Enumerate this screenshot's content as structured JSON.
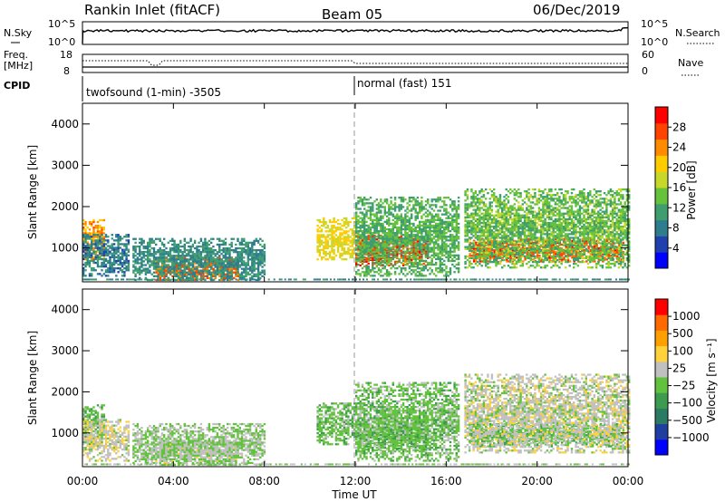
{
  "header": {
    "station": "Rankin Inlet (fitACF)",
    "beam": "Beam 05",
    "date": "06/Dec/2019"
  },
  "status_panels": {
    "nsky": {
      "left_label": "N.Sky",
      "right_label": "N.Search",
      "left_ticks": [
        "10^5",
        "10^0"
      ],
      "right_ticks": [
        "10^5",
        "10^0"
      ]
    },
    "freq": {
      "left_label": "Freq.",
      "left_unit": "[MHz]",
      "right_label": "Nave",
      "left_ticks": [
        "18",
        "8"
      ],
      "right_ticks": [
        "60",
        "0"
      ]
    },
    "cpid": {
      "label": "CPID",
      "segments": [
        {
          "text": "twofsound (1-min) -3505",
          "start_hour": 0,
          "end_hour": 12
        },
        {
          "text": "normal (fast) 151",
          "start_hour": 12,
          "end_hour": 24
        }
      ]
    }
  },
  "chart_data": [
    {
      "type": "heatmap",
      "name": "power",
      "ylabel": "Slant Range [km]",
      "yticks": [
        "1000",
        "2000",
        "3000",
        "4000"
      ],
      "ylim": [
        180,
        4500
      ],
      "xlim": [
        0,
        24
      ],
      "colorbar": {
        "label": "Power [dB]",
        "ticks": [
          "28",
          "24",
          "20",
          "16",
          "12",
          "8",
          "4"
        ],
        "range": [
          0,
          30
        ],
        "colors": [
          "#0000ff",
          "#2040b0",
          "#2e7d8f",
          "#3e9e6e",
          "#66c23a",
          "#c8d82a",
          "#ffcc00",
          "#ff8c00",
          "#ff4400",
          "#ff0000"
        ]
      },
      "echo_regions": [
        {
          "t0": 0.0,
          "t1": 0.9,
          "r0": 700,
          "r1": 1650,
          "level": 22
        },
        {
          "t0": 0.0,
          "t1": 2.0,
          "r0": 300,
          "r1": 1300,
          "level": 8
        },
        {
          "t0": 3.2,
          "t1": 6.8,
          "r0": 200,
          "r1": 750,
          "level": 24
        },
        {
          "t0": 2.2,
          "t1": 8.0,
          "r0": 200,
          "r1": 1200,
          "level": 9
        },
        {
          "t0": 10.3,
          "t1": 12.0,
          "r0": 700,
          "r1": 1700,
          "level": 18
        },
        {
          "t0": 12.0,
          "t1": 15.2,
          "r0": 550,
          "r1": 1300,
          "level": 26
        },
        {
          "t0": 12.0,
          "t1": 16.5,
          "r0": 300,
          "r1": 2200,
          "level": 12
        },
        {
          "t0": 17.0,
          "t1": 23.8,
          "r0": 650,
          "r1": 1200,
          "level": 25
        },
        {
          "t0": 16.8,
          "t1": 24.0,
          "r0": 500,
          "r1": 2400,
          "level": 13
        }
      ]
    },
    {
      "type": "heatmap",
      "name": "velocity",
      "ylabel": "Slant Range [km]",
      "yticks": [
        "1000",
        "2000",
        "3000",
        "4000"
      ],
      "ylim": [
        180,
        4500
      ],
      "xlim": [
        0,
        24
      ],
      "xticks": [
        "00:00",
        "04:00",
        "08:00",
        "12:00",
        "16:00",
        "20:00",
        "00:00"
      ],
      "xlabel": "Time UT",
      "colorbar": {
        "label": "Velocity [m s⁻¹]",
        "ticks": [
          "1000",
          "500",
          "100",
          "25",
          "−25",
          "−100",
          "−500",
          "−1000"
        ],
        "range": [
          -1200,
          1200
        ],
        "colors": [
          "#0000ff",
          "#1e3fa0",
          "#2a7a64",
          "#3c9b4e",
          "#63c23d",
          "#c0c0c0",
          "#ffd23c",
          "#ffa000",
          "#ff6a00",
          "#ff0000"
        ]
      },
      "echo_regions": [
        {
          "t0": 0.0,
          "t1": 0.9,
          "r0": 700,
          "r1": 1650,
          "level": -150
        },
        {
          "t0": 0.0,
          "t1": 2.0,
          "r0": 300,
          "r1": 1300,
          "level": 150
        },
        {
          "t0": 3.2,
          "t1": 6.8,
          "r0": 200,
          "r1": 750,
          "level": 90
        },
        {
          "t0": 2.2,
          "t1": 8.0,
          "r0": 200,
          "r1": 1200,
          "level": 0
        },
        {
          "t0": 10.3,
          "t1": 12.0,
          "r0": 700,
          "r1": 1700,
          "level": -120
        },
        {
          "t0": 12.0,
          "t1": 15.2,
          "r0": 550,
          "r1": 1300,
          "level": -200
        },
        {
          "t0": 12.0,
          "t1": 16.5,
          "r0": 300,
          "r1": 2200,
          "level": -110
        },
        {
          "t0": 17.0,
          "t1": 23.8,
          "r0": 650,
          "r1": 1200,
          "level": -160
        },
        {
          "t0": 16.8,
          "t1": 24.0,
          "r0": 500,
          "r1": 2400,
          "level": 120
        }
      ]
    }
  ]
}
